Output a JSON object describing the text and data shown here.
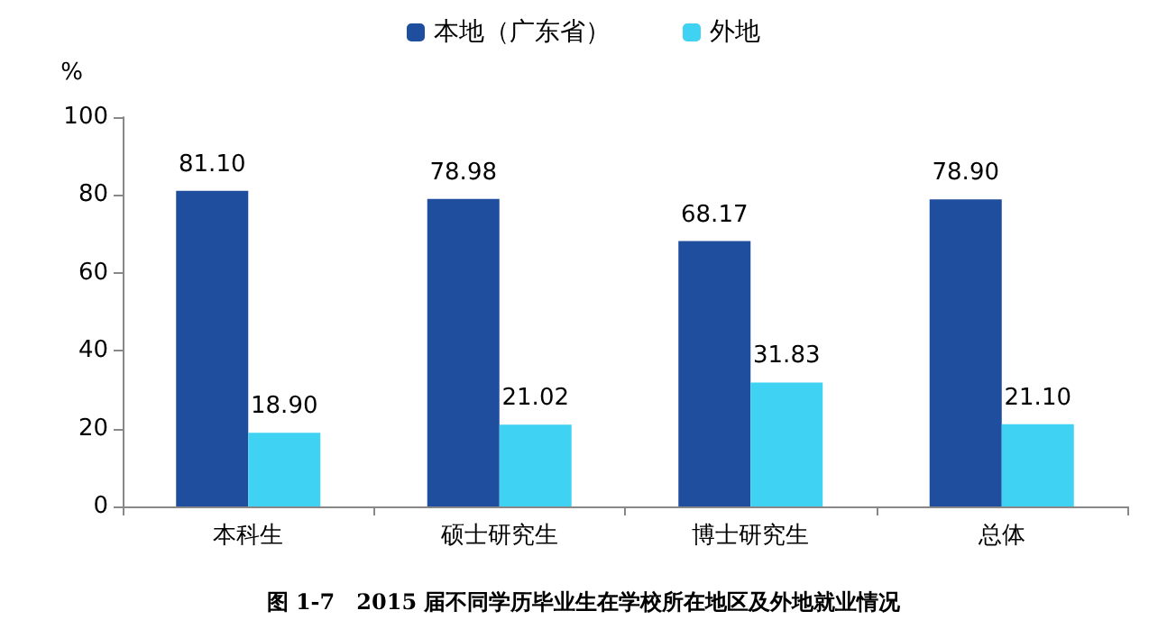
{
  "chart_data": {
    "type": "bar",
    "title": "图 1-7　2015 届不同学历毕业生在学校所在地区及外地就业情况",
    "ylabel": "%",
    "categories": [
      "本科生",
      "硕士研究生",
      "博士研究生",
      "总体"
    ],
    "series": [
      {
        "name": "本地（广东省）",
        "color": "#1f4e9e",
        "values": [
          81.1,
          78.98,
          68.17,
          78.9
        ],
        "value_labels": [
          "81.10",
          "78.98",
          "68.17",
          "78.90"
        ]
      },
      {
        "name": "外地",
        "color": "#40d2f2",
        "values": [
          18.9,
          21.02,
          31.83,
          21.1
        ],
        "value_labels": [
          "18.90",
          "21.02",
          "31.83",
          "21.10"
        ]
      }
    ],
    "ylim": [
      0,
      100
    ],
    "yticks": [
      0,
      20,
      40,
      60,
      80,
      100
    ],
    "grid": false,
    "legend": "top"
  }
}
